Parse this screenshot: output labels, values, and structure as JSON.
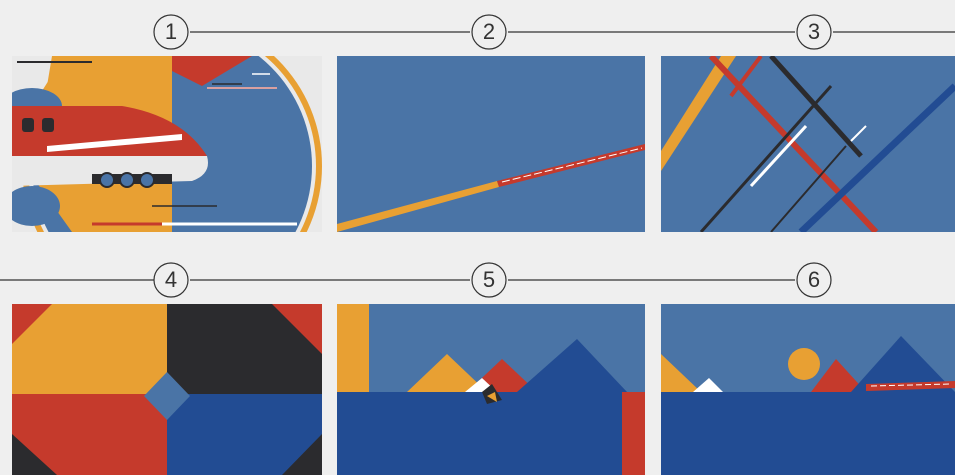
{
  "steps": [
    {
      "label": "1"
    },
    {
      "label": "2"
    },
    {
      "label": "3"
    },
    {
      "label": "4"
    },
    {
      "label": "5"
    },
    {
      "label": "6"
    }
  ],
  "colors": {
    "background": "#efefef",
    "sky_blue": "#4a74a6",
    "deep_blue": "#224c93",
    "orange": "#e8a033",
    "red": "#c53a2c",
    "charcoal": "#2b2b2e",
    "white": "#ffffff"
  }
}
